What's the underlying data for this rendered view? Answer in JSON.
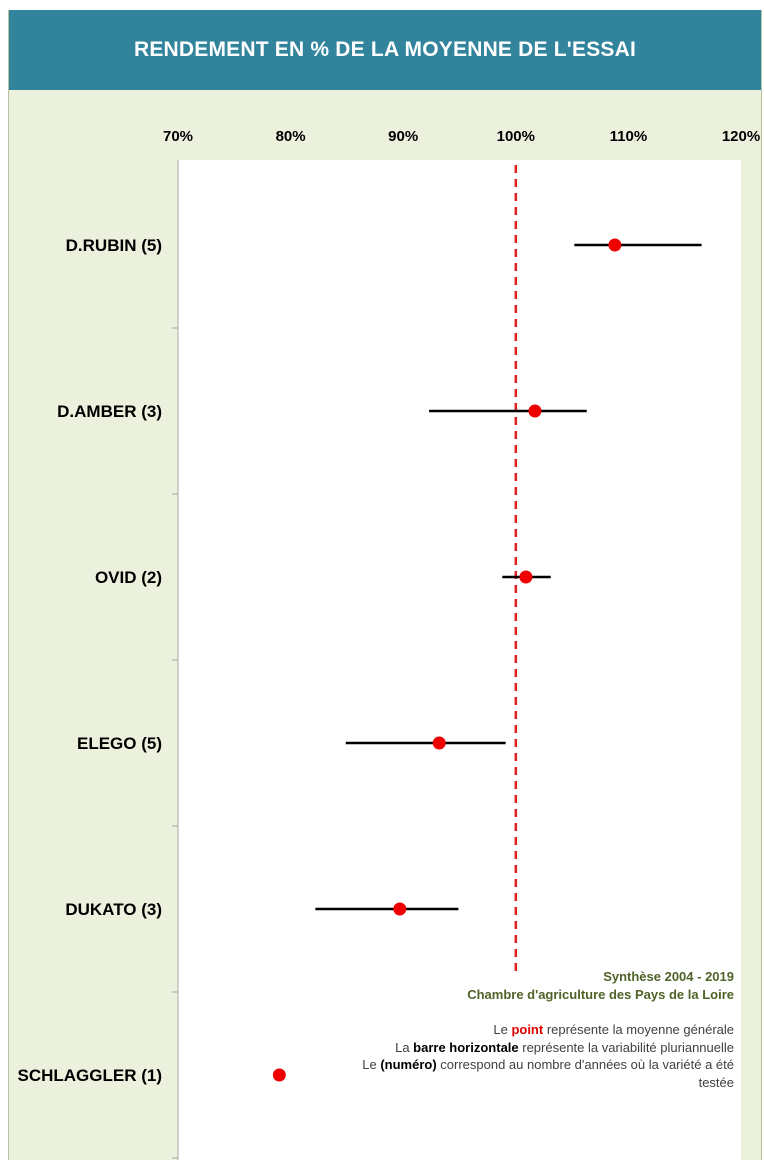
{
  "chart_data": {
    "type": "scatter",
    "title": "RENDEMENT EN % DE LA MOYENNE DE L'ESSAI",
    "x_axis": {
      "min": 70,
      "max": 120,
      "step": 10,
      "tick_labels": [
        "70%",
        "80%",
        "90%",
        "100%",
        "110%",
        "120%"
      ],
      "position": "top"
    },
    "reference_line": {
      "x": 100,
      "style": "dashed",
      "color": "#e02020"
    },
    "colors": {
      "point": "#ee0000",
      "bar": "#000000",
      "plot_bg": "#ffffff",
      "frame_bg": "#ebf1dd",
      "title_bg": "#31849b"
    },
    "grid": false,
    "categories": [
      "D.RUBIN (5)",
      "D.AMBER (3)",
      "OVID (2)",
      "ELEGO (5)",
      "DUKATO (3)",
      "SCHLAGGLER (1)"
    ],
    "points": [
      {
        "label": "D.RUBIN (5)",
        "mean": 108.8,
        "min": 105.2,
        "max": 116.5
      },
      {
        "label": "D.AMBER (3)",
        "mean": 101.7,
        "min": 92.3,
        "max": 106.3
      },
      {
        "label": "OVID (2)",
        "mean": 100.9,
        "min": 98.8,
        "max": 103.1
      },
      {
        "label": "ELEGO (5)",
        "mean": 93.2,
        "min": 84.9,
        "max": 99.1
      },
      {
        "label": "DUKATO (3)",
        "mean": 89.7,
        "min": 82.2,
        "max": 94.9
      },
      {
        "label": "SCHLAGGLER (1)",
        "mean": 79.0,
        "min": null,
        "max": null
      }
    ]
  },
  "notes": {
    "source_line1": "Synthèse 2004 - 2019",
    "source_line2": "Chambre d'agriculture des Pays de la Loire",
    "legend_l1_pre": "Le ",
    "legend_l1_bold": "point",
    "legend_l1_post": " représente la moyenne générale",
    "legend_l2_pre": "La ",
    "legend_l2_bold": "barre horizontale",
    "legend_l2_post": " représente la variabilité pluriannuelle",
    "legend_l3_pre": "Le ",
    "legend_l3_bold": "(numéro)",
    "legend_l3_post": " correspond au nombre d'années où la variété a été testée"
  }
}
